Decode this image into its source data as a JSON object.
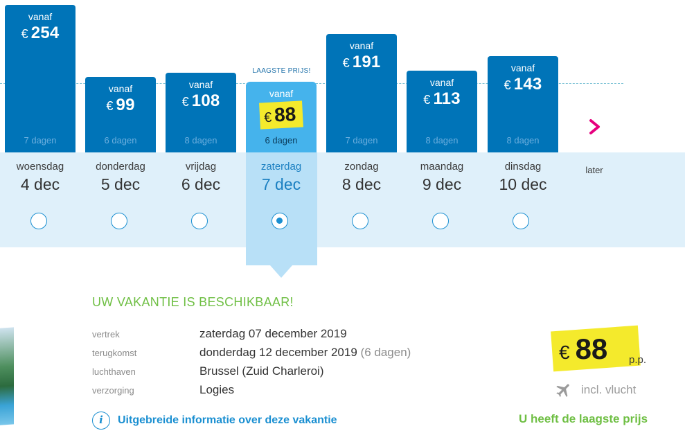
{
  "chart": {
    "lowest_label": "LAAGSTE PRIJS!",
    "currency": "€",
    "next_label": "later",
    "bars": [
      {
        "vanaf": "vanaf",
        "price": "254",
        "days": "7 dagen",
        "weekday": "woensdag",
        "date": "4 dec",
        "selected": false
      },
      {
        "vanaf": "vanaf",
        "price": "99",
        "days": "6 dagen",
        "weekday": "donderdag",
        "date": "5 dec",
        "selected": false
      },
      {
        "vanaf": "vanaf",
        "price": "108",
        "days": "8 dagen",
        "weekday": "vrijdag",
        "date": "6 dec",
        "selected": false
      },
      {
        "vanaf": "vanaf",
        "price": "88",
        "days": "6 dagen",
        "weekday": "zaterdag",
        "date": "7 dec",
        "selected": true
      },
      {
        "vanaf": "vanaf",
        "price": "191",
        "days": "7 dagen",
        "weekday": "zondag",
        "date": "8 dec",
        "selected": false
      },
      {
        "vanaf": "vanaf",
        "price": "113",
        "days": "8 dagen",
        "weekday": "maandag",
        "date": "9 dec",
        "selected": false
      },
      {
        "vanaf": "vanaf",
        "price": "143",
        "days": "8 dagen",
        "weekday": "dinsdag",
        "date": "10 dec",
        "selected": false
      }
    ]
  },
  "details": {
    "title": "UW VAKANTIE IS BESCHIKBAAR!",
    "rows": [
      {
        "label": "vertrek",
        "value": "zaterdag 07 december 2019",
        "extra": ""
      },
      {
        "label": "terugkomst",
        "value": "donderdag 12 december 2019",
        "extra": "(6 dagen)"
      },
      {
        "label": "luchthaven",
        "value": "Brussel (Zuid Charleroi)",
        "extra": ""
      },
      {
        "label": "verzorging",
        "value": "Logies",
        "extra": ""
      }
    ],
    "info_link": "Uitgebreide informatie over deze vakantie"
  },
  "price_box": {
    "currency": "€",
    "price": "88",
    "per_person": "p.p.",
    "flight_text": "incl. vlucht",
    "flight_icon": "airplane-icon",
    "lowest_message": "U heeft de laagste prijs"
  },
  "colors": {
    "bar_blue": "#0074b8",
    "selected_blue": "#45b3ec",
    "highlight_yellow": "#f4ea2c",
    "green": "#6fbf44",
    "link_blue": "#1a8fd1",
    "pink_arrow": "#e6007e"
  }
}
